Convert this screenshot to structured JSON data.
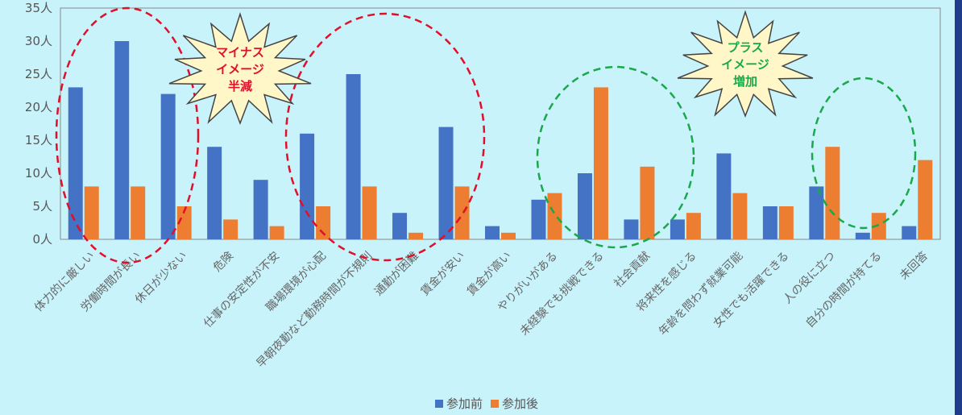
{
  "chart_data": {
    "type": "bar",
    "categories": [
      "体力的に厳しい",
      "労働時間が長い",
      "休日が少ない",
      "危険",
      "仕事の安定性が不安",
      "職場環境が心配",
      "早朝夜勤など勤務時間が不規則",
      "通勤が困難",
      "賃金が安い",
      "賃金が高い",
      "やりがいがある",
      "未経験でも挑戦できる",
      "社会貢献",
      "将来性を感じる",
      "年齢を問わず就業可能",
      "女性でも活躍できる",
      "人の役に立つ",
      "自分の時間が持てる",
      "未回答"
    ],
    "series": [
      {
        "name": "参加前",
        "color": "#4472c4",
        "values": [
          23,
          30,
          22,
          14,
          9,
          16,
          25,
          4,
          17,
          2,
          6,
          10,
          3,
          3,
          13,
          5,
          8,
          1,
          2
        ]
      },
      {
        "name": "参加後",
        "color": "#ed7d31",
        "values": [
          8,
          8,
          5,
          3,
          2,
          5,
          8,
          1,
          8,
          1,
          7,
          23,
          11,
          4,
          7,
          5,
          14,
          4,
          12
        ]
      }
    ],
    "yticks": [
      "0人",
      "5人",
      "10人",
      "15人",
      "20人",
      "25人",
      "30人",
      "35人"
    ],
    "ylim": [
      0,
      35
    ],
    "grid": false,
    "legend_position": "bottom",
    "annotations": [
      {
        "lines": [
          "マイナス",
          "イメージ",
          "半減"
        ],
        "color": "#e0102a"
      },
      {
        "lines": [
          "プラス",
          "イメージ",
          "増加"
        ],
        "color": "#1aa84a"
      }
    ]
  }
}
